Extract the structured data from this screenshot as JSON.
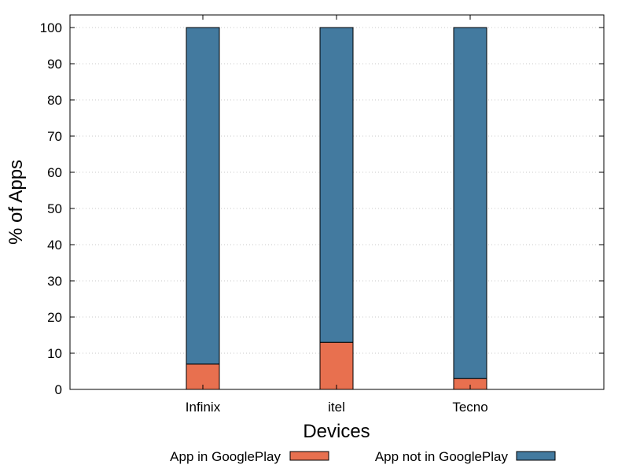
{
  "chart_data": {
    "type": "bar",
    "stacked": true,
    "categories": [
      "Infinix",
      "itel",
      "Tecno"
    ],
    "series": [
      {
        "name": "App in GooglePlay",
        "values": [
          7,
          13,
          3
        ],
        "color": "#e8704f"
      },
      {
        "name": "App not in GooglePlay",
        "values": [
          93,
          87,
          97
        ],
        "color": "#437a9f"
      }
    ],
    "xlabel": "Devices",
    "ylabel": "% of Apps",
    "ylim": [
      0,
      100
    ],
    "yticks": [
      0,
      10,
      20,
      30,
      40,
      50,
      60,
      70,
      80,
      90,
      100
    ],
    "grid": true,
    "legend_position": "bottom"
  }
}
